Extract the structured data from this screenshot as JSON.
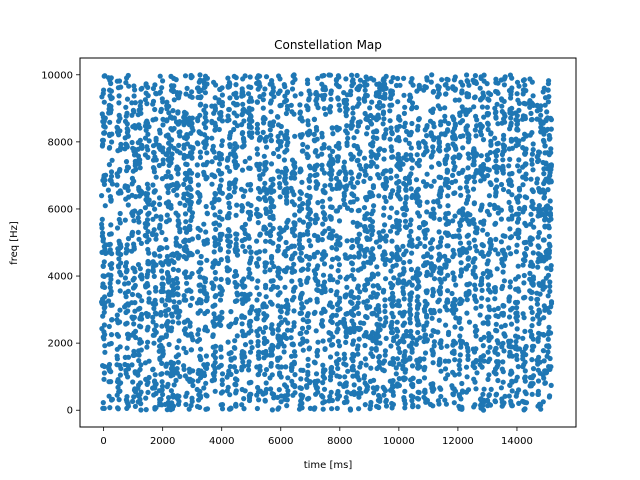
{
  "chart_data": {
    "type": "scatter",
    "title": "Constellation Map",
    "xlabel": "time [ms]",
    "ylabel": "freq [Hz]",
    "xlim": [
      -800,
      16000
    ],
    "ylim": [
      -500,
      10500
    ],
    "xticks": [
      0,
      2000,
      4000,
      6000,
      8000,
      10000,
      12000,
      14000
    ],
    "yticks": [
      0,
      2000,
      4000,
      6000,
      8000,
      10000
    ],
    "xtick_labels": [
      "0",
      "2000",
      "4000",
      "6000",
      "8000",
      "10000",
      "12000",
      "14000"
    ],
    "ytick_labels": [
      "0",
      "2000",
      "4000",
      "6000",
      "8000",
      "10000"
    ],
    "grid": false,
    "marker_color": "#1f77b4",
    "series": [
      {
        "time_columns_ms": [
          0,
          230,
          520,
          780,
          1020,
          1230,
          1480,
          1720,
          1950,
          2160,
          2330,
          2520,
          2780,
          2960,
          3240,
          3450,
          3730,
          3960,
          4250,
          4470,
          4740,
          4960,
          5240,
          5460,
          5700,
          5960,
          6180,
          6420,
          6700,
          6940,
          7200,
          7450,
          7700,
          7950,
          8200,
          8420,
          8650,
          8880,
          9080,
          9300,
          9520,
          9760,
          9980,
          10200,
          10420,
          10650,
          10900,
          11140,
          11380,
          11620,
          11860,
          12100,
          12340,
          12580,
          12820,
          13060,
          13300,
          13540,
          13780,
          14020,
          14260,
          14500,
          14740,
          14950,
          15100
        ],
        "freq_range_hz": [
          0,
          10000
        ],
        "approx_point_count": 5000
      }
    ]
  }
}
